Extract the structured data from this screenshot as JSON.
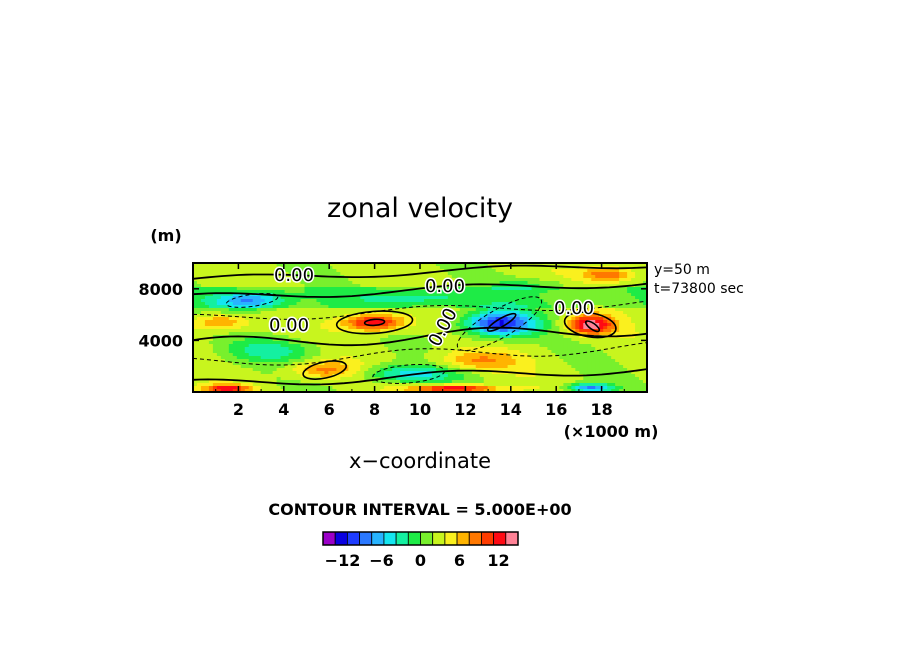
{
  "chart_data": {
    "type": "heatmap",
    "title": "zonal velocity",
    "xlabel": "x−coordinate",
    "x_unit": "(×1000 m)",
    "y_unit": "(m)",
    "xlim": [
      0,
      20
    ],
    "ylim": [
      0,
      10000
    ],
    "x_ticks": [
      "2",
      "4",
      "6",
      "8",
      "10",
      "12",
      "14",
      "16",
      "18"
    ],
    "y_ticks": [
      "4000",
      "8000"
    ],
    "info_lines": [
      "y=50 m",
      "t=73800 sec"
    ],
    "contour_interval_text": "CONTOUR INTERVAL = 5.000E+00",
    "contour_labels": [
      "0.00",
      "0.00",
      "0.00",
      "0.00",
      "0.00"
    ],
    "colorbar": {
      "tick_labels": [
        "−12",
        "−6",
        "0",
        "6",
        "12"
      ],
      "tick_values": [
        -12,
        -6,
        0,
        6,
        12
      ],
      "range": [
        -15,
        15
      ],
      "colors": [
        "#9b00c8",
        "#0a00e0",
        "#1e3cff",
        "#2a78ff",
        "#28b4ff",
        "#14e6f0",
        "#14f0a0",
        "#1eeb46",
        "#78f02d",
        "#c8f51e",
        "#faf01e",
        "#ffb400",
        "#ff7800",
        "#ff3c00",
        "#ff0a14",
        "#ff8296"
      ]
    },
    "features": [
      {
        "x": 2.5,
        "y": 7100,
        "value": -9,
        "sx": 1.5,
        "sy": 700
      },
      {
        "x": 1.2,
        "y": 5400,
        "value": 6,
        "sx": 1.2,
        "sy": 600
      },
      {
        "x": 3.5,
        "y": 3200,
        "value": -5,
        "sx": 2.0,
        "sy": 900
      },
      {
        "x": 8.0,
        "y": 5400,
        "value": 11,
        "sx": 1.3,
        "sy": 650
      },
      {
        "x": 5.8,
        "y": 1700,
        "value": 6,
        "sx": 1.5,
        "sy": 650
      },
      {
        "x": 9.5,
        "y": 1400,
        "value": -7,
        "sx": 2.2,
        "sy": 700
      },
      {
        "x": 13.5,
        "y": 5300,
        "value": -14,
        "sx": 1.6,
        "sy": 1000
      },
      {
        "x": 12.5,
        "y": 2400,
        "value": 5,
        "sx": 1.8,
        "sy": 800
      },
      {
        "x": 17.5,
        "y": 5200,
        "value": 12,
        "sx": 1.0,
        "sy": 750
      },
      {
        "x": 18.3,
        "y": 9100,
        "value": 7,
        "sx": 1.2,
        "sy": 600
      },
      {
        "x": 15.0,
        "y": 8300,
        "value": -3,
        "sx": 2.0,
        "sy": 500
      },
      {
        "x": 10.0,
        "y": 7300,
        "value": -4,
        "sx": 2.5,
        "sy": 600
      },
      {
        "x": 11.5,
        "y": 250,
        "value": 12,
        "sx": 1.8,
        "sy": 300
      },
      {
        "x": 1.5,
        "y": 250,
        "value": 10,
        "sx": 1.0,
        "sy": 300
      },
      {
        "x": 17.5,
        "y": 300,
        "value": -10,
        "sx": 1.0,
        "sy": 350
      }
    ]
  }
}
